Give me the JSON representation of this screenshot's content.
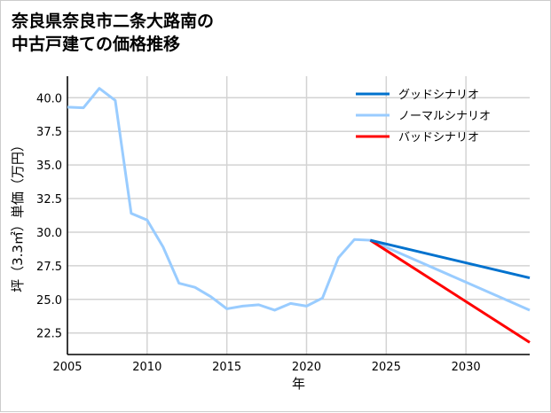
{
  "chart_data": {
    "type": "line",
    "title_lines": [
      "奈良県奈良市二条大路南の",
      "中古戸建ての価格推移"
    ],
    "xlabel": "年",
    "ylabel": "坪（3.3㎡）単価（万円）",
    "xlim": [
      2005,
      2034
    ],
    "ylim": [
      20.9,
      41.6
    ],
    "xticks": [
      2005,
      2010,
      2015,
      2020,
      2025,
      2030
    ],
    "yticks": [
      22.5,
      25.0,
      27.5,
      30.0,
      32.5,
      35.0,
      37.5,
      40.0
    ],
    "grid": true,
    "legend_position": "top-right",
    "series": [
      {
        "name": "グッドシナリオ",
        "color": "#0072CE",
        "x": [
          2024,
          2034
        ],
        "y": [
          29.4,
          26.6
        ]
      },
      {
        "name": "ノーマルシナリオ",
        "color": "#99CCFF",
        "x": [
          2005,
          2006,
          2007,
          2008,
          2009,
          2010,
          2011,
          2012,
          2013,
          2014,
          2015,
          2016,
          2017,
          2018,
          2019,
          2020,
          2021,
          2022,
          2023,
          2024,
          2034
        ],
        "y": [
          39.3,
          39.25,
          40.7,
          39.8,
          31.4,
          30.9,
          28.9,
          26.2,
          25.9,
          25.2,
          24.3,
          24.5,
          24.6,
          24.2,
          24.7,
          24.5,
          25.1,
          28.1,
          29.45,
          29.4,
          24.2
        ]
      },
      {
        "name": "バッドシナリオ",
        "color": "#FF0000",
        "x": [
          2024,
          2034
        ],
        "y": [
          29.4,
          21.8
        ]
      }
    ]
  }
}
